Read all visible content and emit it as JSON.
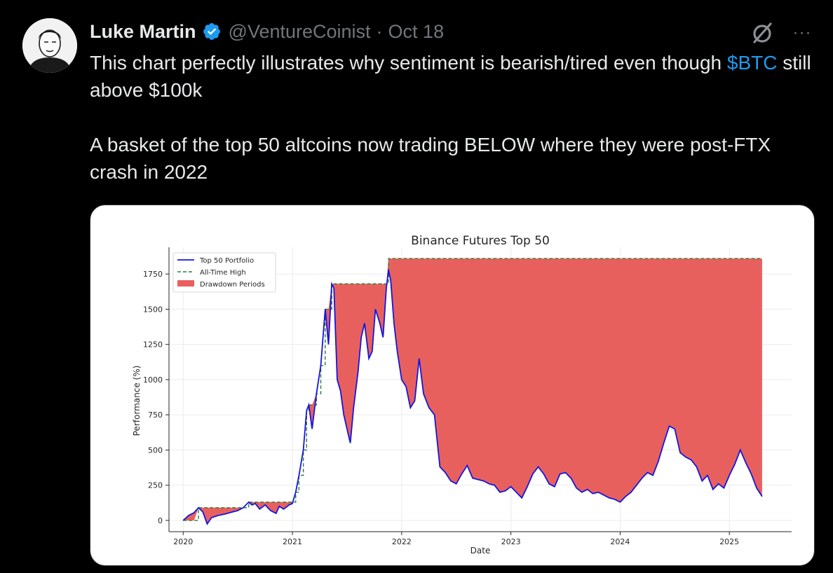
{
  "tweet": {
    "author_name": "Luke Martin",
    "handle": "@VentureCoinist",
    "separator": "·",
    "date": "Oct 18",
    "more_label": "···",
    "text_line1_a": "This chart perfectly illustrates why sentiment is bearish/tired even though ",
    "cashtag": "$BTC",
    "text_line1_b": " still above $100k",
    "text_para2": "A basket of the top 50 altcoins now trading BELOW where they were post-FTX crash in 2022"
  },
  "icons": {
    "verified": "verified-badge-icon",
    "grok": "grok-icon",
    "more": "more-options-icon"
  },
  "colors": {
    "accent": "#1d9bf0",
    "series_line": "#1515e0",
    "ath_line": "#2e7d32",
    "drawdown_fill": "#e8605e"
  },
  "chart_data": {
    "type": "line",
    "title": "Binance Futures Top 50",
    "xlabel": "Date",
    "ylabel": "Performance (%)",
    "xlim": [
      2019.87,
      2025.57
    ],
    "ylim": [
      -80,
      1940
    ],
    "x_ticks": [
      "2020",
      "2021",
      "2022",
      "2023",
      "2024",
      "2025"
    ],
    "y_ticks": [
      0,
      250,
      500,
      750,
      1000,
      1250,
      1500,
      1750
    ],
    "grid": true,
    "legend_position": "top-left",
    "legend": [
      "Top 50 Portfolio",
      "All-Time High",
      "Drawdown Periods"
    ],
    "series": [
      {
        "name": "Top 50 Portfolio",
        "x": [
          2020.0,
          2020.05,
          2020.1,
          2020.14,
          2020.18,
          2020.22,
          2020.26,
          2020.32,
          2020.38,
          2020.45,
          2020.5,
          2020.55,
          2020.6,
          2020.63,
          2020.66,
          2020.7,
          2020.75,
          2020.8,
          2020.85,
          2020.88,
          2020.92,
          2020.97,
          2021.0,
          2021.03,
          2021.06,
          2021.1,
          2021.13,
          2021.15,
          2021.18,
          2021.22,
          2021.26,
          2021.3,
          2021.33,
          2021.36,
          2021.38,
          2021.41,
          2021.44,
          2021.47,
          2021.5,
          2021.53,
          2021.56,
          2021.6,
          2021.63,
          2021.66,
          2021.7,
          2021.73,
          2021.76,
          2021.8,
          2021.83,
          2021.86,
          2021.88,
          2021.9,
          2021.93,
          2021.96,
          2022.0,
          2022.04,
          2022.08,
          2022.12,
          2022.16,
          2022.2,
          2022.25,
          2022.3,
          2022.35,
          2022.4,
          2022.45,
          2022.5,
          2022.55,
          2022.6,
          2022.65,
          2022.7,
          2022.75,
          2022.8,
          2022.85,
          2022.9,
          2022.95,
          2023.0,
          2023.05,
          2023.1,
          2023.15,
          2023.2,
          2023.25,
          2023.3,
          2023.35,
          2023.4,
          2023.45,
          2023.5,
          2023.55,
          2023.6,
          2023.65,
          2023.7,
          2023.75,
          2023.8,
          2023.85,
          2023.9,
          2023.95,
          2024.0,
          2024.05,
          2024.1,
          2024.15,
          2024.2,
          2024.25,
          2024.3,
          2024.35,
          2024.4,
          2024.45,
          2024.5,
          2024.55,
          2024.6,
          2024.65,
          2024.7,
          2024.75,
          2024.8,
          2024.85,
          2024.9,
          2024.95,
          2025.0,
          2025.05,
          2025.1,
          2025.15,
          2025.2,
          2025.25,
          2025.3
        ],
        "y": [
          0,
          35,
          55,
          90,
          60,
          -25,
          20,
          35,
          45,
          60,
          70,
          90,
          130,
          110,
          120,
          80,
          110,
          70,
          50,
          100,
          80,
          110,
          120,
          200,
          320,
          500,
          780,
          820,
          650,
          900,
          1100,
          1500,
          1250,
          1680,
          1650,
          1000,
          920,
          750,
          650,
          550,
          800,
          1050,
          1300,
          1400,
          1150,
          1200,
          1500,
          1400,
          1300,
          1650,
          1780,
          1700,
          1400,
          1200,
          1000,
          950,
          800,
          850,
          1150,
          900,
          800,
          750,
          380,
          340,
          280,
          260,
          330,
          390,
          300,
          290,
          280,
          260,
          250,
          200,
          210,
          240,
          200,
          160,
          240,
          330,
          380,
          330,
          260,
          240,
          330,
          340,
          300,
          230,
          200,
          220,
          190,
          200,
          180,
          160,
          150,
          130,
          170,
          200,
          250,
          300,
          340,
          320,
          420,
          550,
          670,
          650,
          480,
          450,
          430,
          380,
          280,
          320,
          220,
          260,
          230,
          320,
          400,
          500,
          410,
          330,
          230,
          170
        ]
      },
      {
        "name": "All-Time High",
        "x": [
          2020.0,
          2020.14,
          2020.6,
          2021.03,
          2021.06,
          2021.1,
          2021.13,
          2021.15,
          2021.22,
          2021.26,
          2021.3,
          2021.36,
          2021.88,
          2025.3
        ],
        "y": [
          0,
          90,
          130,
          200,
          320,
          500,
          780,
          820,
          900,
          1100,
          1500,
          1680,
          1860,
          1860
        ]
      }
    ]
  }
}
